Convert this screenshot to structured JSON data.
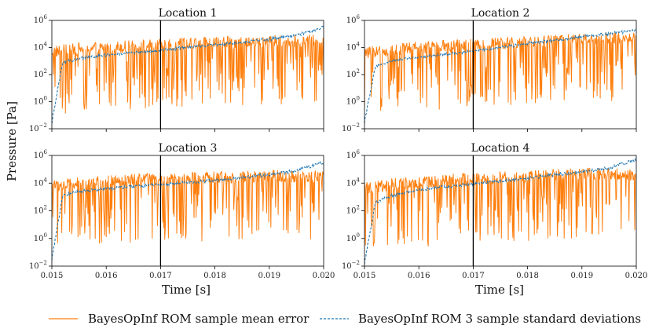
{
  "figure": {
    "ylabel": "Pressure [Pa]",
    "xlabel": "Time [s]",
    "vline_x": 0.017
  },
  "colors": {
    "mean_error": "#ff7f0e",
    "std": "#1f77b4",
    "vline": "#000000"
  },
  "legend": {
    "mean_error": "BayesOpInf ROM sample mean error",
    "std": "BayesOpInf ROM 3 sample standard deviations"
  },
  "chart_data": [
    {
      "type": "line",
      "title": "Location 1",
      "xlim": [
        0.015,
        0.02
      ],
      "yscale": "log",
      "ylim_exp": [
        -2,
        6
      ],
      "xticks": [
        "0.015",
        "0.016",
        "0.017",
        "0.018",
        "0.019",
        "0.020"
      ],
      "yticks_exp": [
        "-2",
        "0",
        "2",
        "4",
        "6"
      ],
      "series": [
        {
          "name": "BayesOpInf ROM sample mean error",
          "x": [
            0.015,
            0.0155,
            0.016,
            0.0165,
            0.017,
            0.0175,
            0.018,
            0.0185,
            0.019,
            0.0195,
            0.02
          ],
          "log10_values": [
            3.4,
            3.6,
            3.7,
            3.8,
            3.9,
            4.0,
            4.05,
            4.1,
            4.15,
            4.2,
            4.2
          ]
        },
        {
          "name": "BayesOpInf ROM 3 sample standard deviations",
          "x": [
            0.015,
            0.0152,
            0.0155,
            0.016,
            0.0165,
            0.017,
            0.0175,
            0.018,
            0.0185,
            0.019,
            0.0195,
            0.02
          ],
          "log10_values": [
            -1.5,
            2.9,
            3.2,
            3.45,
            3.6,
            3.8,
            4.0,
            4.2,
            4.4,
            4.6,
            4.9,
            5.5
          ]
        }
      ]
    },
    {
      "type": "line",
      "title": "Location 2",
      "xlim": [
        0.015,
        0.02
      ],
      "yscale": "log",
      "ylim_exp": [
        -2,
        6
      ],
      "xticks": [
        "0.015",
        "0.016",
        "0.017",
        "0.018",
        "0.019",
        "0.020"
      ],
      "yticks_exp": [
        "-2",
        "0",
        "2",
        "4",
        "6"
      ],
      "series": [
        {
          "name": "BayesOpInf ROM sample mean error",
          "x": [
            0.015,
            0.0155,
            0.016,
            0.0165,
            0.017,
            0.0175,
            0.018,
            0.0185,
            0.019,
            0.0195,
            0.02
          ],
          "log10_values": [
            3.3,
            3.5,
            3.7,
            3.8,
            3.9,
            4.0,
            4.1,
            4.2,
            4.3,
            4.4,
            4.4
          ]
        },
        {
          "name": "BayesOpInf ROM 3 sample standard deviations",
          "x": [
            0.015,
            0.0152,
            0.0155,
            0.016,
            0.0165,
            0.017,
            0.0175,
            0.018,
            0.0185,
            0.019,
            0.0195,
            0.02
          ],
          "log10_values": [
            -1.5,
            2.6,
            3.0,
            3.3,
            3.5,
            3.75,
            4.0,
            4.3,
            4.55,
            4.8,
            5.0,
            5.3
          ]
        }
      ]
    },
    {
      "type": "line",
      "title": "Location 3",
      "xlim": [
        0.015,
        0.02
      ],
      "yscale": "log",
      "ylim_exp": [
        -2,
        6
      ],
      "xticks": [
        "0.015",
        "0.016",
        "0.017",
        "0.018",
        "0.019",
        "0.020"
      ],
      "yticks_exp": [
        "-2",
        "0",
        "2",
        "4",
        "6"
      ],
      "series": [
        {
          "name": "BayesOpInf ROM sample mean error",
          "x": [
            0.015,
            0.0155,
            0.016,
            0.0165,
            0.017,
            0.0175,
            0.018,
            0.0185,
            0.019,
            0.0195,
            0.02
          ],
          "log10_values": [
            3.5,
            3.7,
            3.8,
            3.9,
            4.0,
            4.05,
            4.1,
            4.15,
            4.2,
            4.2,
            4.2
          ]
        },
        {
          "name": "BayesOpInf ROM 3 sample standard deviations",
          "x": [
            0.015,
            0.0152,
            0.0155,
            0.016,
            0.0165,
            0.017,
            0.0175,
            0.018,
            0.0185,
            0.019,
            0.0195,
            0.02
          ],
          "log10_values": [
            -1.5,
            3.1,
            3.4,
            3.6,
            3.75,
            3.9,
            4.05,
            4.2,
            4.4,
            4.6,
            4.9,
            5.5
          ]
        }
      ]
    },
    {
      "type": "line",
      "title": "Location 4",
      "xlim": [
        0.015,
        0.02
      ],
      "yscale": "log",
      "ylim_exp": [
        -2,
        6
      ],
      "xticks": [
        "0.015",
        "0.016",
        "0.017",
        "0.018",
        "0.019",
        "0.020"
      ],
      "yticks_exp": [
        "-2",
        "0",
        "2",
        "4",
        "6"
      ],
      "series": [
        {
          "name": "BayesOpInf ROM sample mean error",
          "x": [
            0.015,
            0.0155,
            0.016,
            0.0165,
            0.017,
            0.0175,
            0.018,
            0.0185,
            0.019,
            0.0195,
            0.02
          ],
          "log10_values": [
            3.3,
            3.6,
            3.8,
            3.9,
            4.0,
            4.1,
            4.2,
            4.3,
            4.35,
            4.4,
            4.3
          ]
        },
        {
          "name": "BayesOpInf ROM 3 sample standard deviations",
          "x": [
            0.015,
            0.0152,
            0.0155,
            0.016,
            0.0165,
            0.017,
            0.0175,
            0.018,
            0.0185,
            0.019,
            0.0195,
            0.02
          ],
          "log10_values": [
            -1.8,
            2.6,
            3.1,
            3.5,
            3.75,
            3.95,
            4.15,
            4.35,
            4.6,
            4.8,
            5.1,
            5.7
          ]
        }
      ]
    }
  ]
}
